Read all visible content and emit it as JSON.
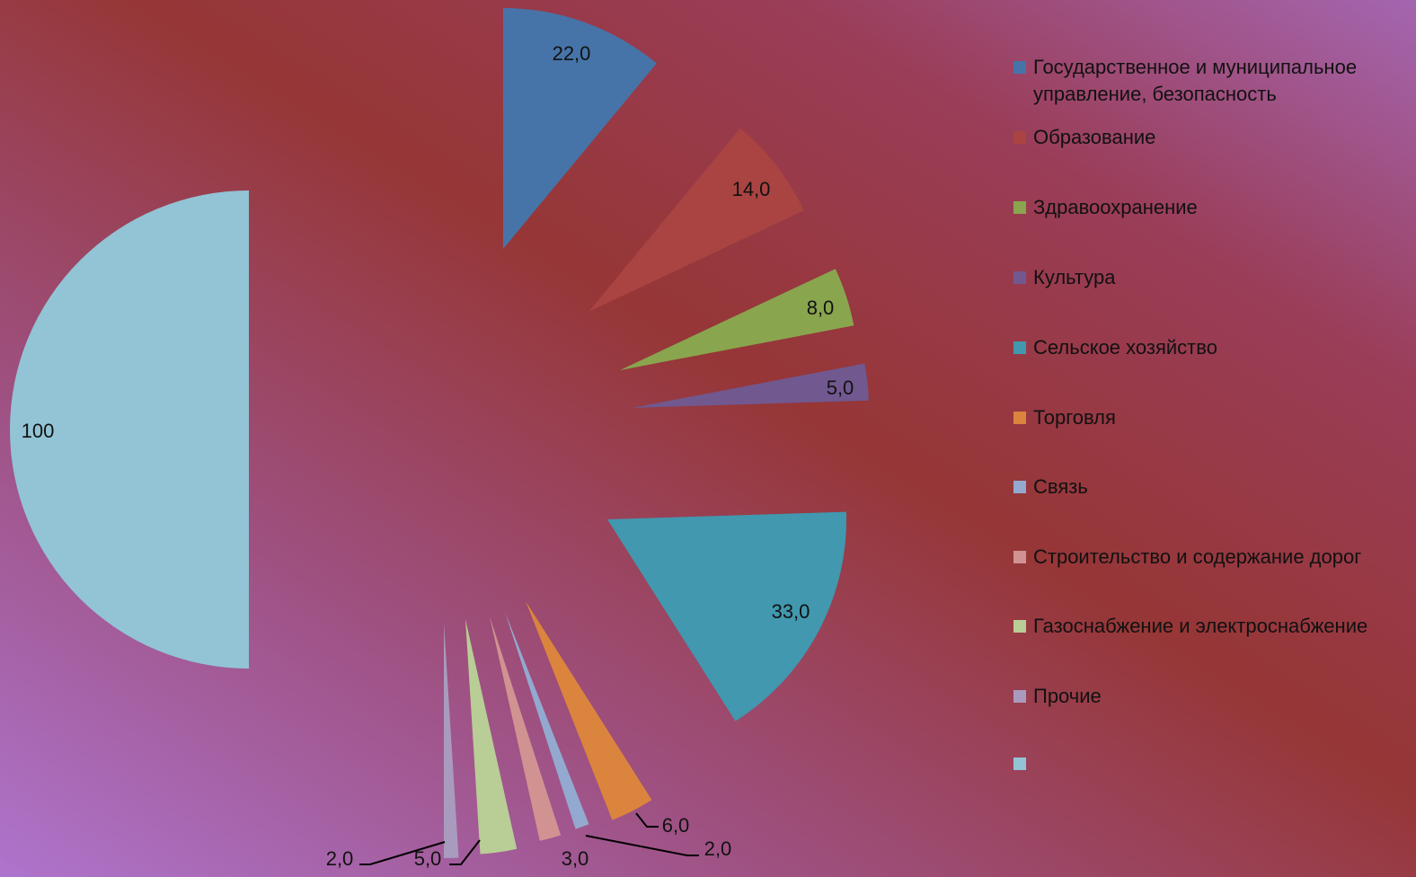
{
  "chart_data": {
    "type": "pie",
    "title": "",
    "slices": [
      {
        "label": "Государственное и муниципальное управление, безопасность",
        "value": 22,
        "display": "22,0",
        "color": "#4674a8"
      },
      {
        "label": " Образование",
        "value": 14,
        "display": "14,0",
        "color": "#a94442"
      },
      {
        "label": "Здравоохранение",
        "value": 8,
        "display": "8,0",
        "color": "#89a54e"
      },
      {
        "label": "Культура",
        "value": 5,
        "display": "5,0",
        "color": "#71588f"
      },
      {
        "label": "Сельское хозяйство",
        "value": 33,
        "display": "33,0",
        "color": "#4198af"
      },
      {
        "label": "Торговля",
        "value": 6,
        "display": "6,0",
        "color": "#db843d"
      },
      {
        "label": "Связь",
        "value": 2,
        "display": "2,0",
        "color": "#93a9cf"
      },
      {
        "label": "Строительство и содержание дорог",
        "value": 3,
        "display": "3,0",
        "color": "#d19392"
      },
      {
        "label": "Газоснабжение и электроснабжение",
        "value": 5,
        "display": "5,0",
        "color": "#b9cd96"
      },
      {
        "label": "Прочие",
        "value": 2,
        "display": "2,0",
        "color": "#a99bbd"
      },
      {
        "label": "",
        "value": 100,
        "display": "100",
        "color": "#92c4d5"
      }
    ],
    "legend_position": "right"
  }
}
